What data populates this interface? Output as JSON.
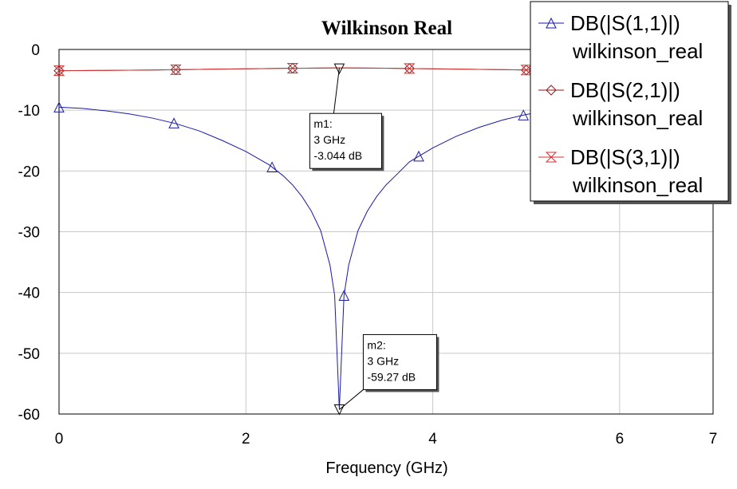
{
  "chart_data": {
    "type": "line",
    "title": "Wilkinson Real",
    "xlabel": "Frequency (GHz)",
    "ylabel": "",
    "xlim": [
      0,
      7
    ],
    "ylim": [
      -60,
      0
    ],
    "xticks": [
      0,
      2,
      4,
      6,
      7
    ],
    "yticks": [
      0,
      -10,
      -20,
      -30,
      -40,
      -50,
      -60
    ],
    "grid": true,
    "legend_position": "top-right",
    "series": [
      {
        "name": "DB(|S(1,1)|)",
        "sub": "wilkinson_real",
        "color": "#1a1aa6",
        "marker": "triangle-up",
        "x": [
          0,
          0.25,
          0.5,
          0.75,
          1.0,
          1.25,
          1.5,
          1.75,
          2.0,
          2.25,
          2.4,
          2.5,
          2.6,
          2.7,
          2.8,
          2.9,
          2.95,
          3.0,
          3.05,
          3.1,
          3.2,
          3.3,
          3.4,
          3.5,
          3.6,
          3.75,
          4.0,
          4.25,
          4.5,
          4.75,
          5.0,
          5.25,
          5.5,
          5.75,
          6.0,
          6.25,
          6.5,
          6.75,
          7.0
        ],
        "values": [
          -9.5,
          -9.7,
          -10.1,
          -10.6,
          -11.3,
          -12.2,
          -13.4,
          -15.0,
          -16.8,
          -19.0,
          -20.8,
          -22.3,
          -24.2,
          -26.6,
          -29.8,
          -35.5,
          -40.5,
          -59.27,
          -40.5,
          -35.5,
          -29.8,
          -26.6,
          -24.2,
          -22.3,
          -20.8,
          -18.5,
          -16.2,
          -14.3,
          -12.8,
          -11.6,
          -10.7,
          -10.1,
          -9.8,
          -9.6,
          -9.5,
          -9.45,
          -9.4,
          -9.4,
          -9.4
        ],
        "marker_x": [
          0,
          1.23,
          2.28,
          3.05,
          3.85,
          4.97
        ]
      },
      {
        "name": "DB(|S(2,1)|)",
        "sub": "wilkinson_real",
        "color": "#8b1a1a",
        "marker": "diamond",
        "x": [
          0,
          0.5,
          1.0,
          1.5,
          2.0,
          2.5,
          3.0,
          3.5,
          4.0,
          4.5,
          5.0,
          5.5,
          6.0,
          6.5,
          7.0
        ],
        "values": [
          -3.5,
          -3.45,
          -3.38,
          -3.28,
          -3.18,
          -3.09,
          -3.044,
          -3.09,
          -3.18,
          -3.28,
          -3.38,
          -3.45,
          -3.5,
          -3.52,
          -3.55
        ],
        "marker_x": [
          0,
          1.25,
          2.5,
          3.75,
          5.0
        ]
      },
      {
        "name": "DB(|S(3,1)|)",
        "sub": "wilkinson_real",
        "color": "#d63030",
        "marker": "hourglass",
        "x": [
          0,
          0.5,
          1.0,
          1.5,
          2.0,
          2.5,
          3.0,
          3.5,
          4.0,
          4.5,
          5.0,
          5.5,
          6.0,
          6.5,
          7.0
        ],
        "values": [
          -3.5,
          -3.45,
          -3.38,
          -3.28,
          -3.18,
          -3.09,
          -3.044,
          -3.09,
          -3.18,
          -3.28,
          -3.38,
          -3.45,
          -3.5,
          -3.52,
          -3.55
        ],
        "marker_x": [
          0,
          1.25,
          2.5,
          3.75,
          5.0
        ]
      }
    ],
    "annotations": [
      {
        "id": "m1",
        "label": "m1:",
        "freq": "3 GHz",
        "value": "-3.044 dB",
        "x": 3,
        "y": -3.044
      },
      {
        "id": "m2",
        "label": "m2:",
        "freq": "3 GHz",
        "value": "-59.27 dB",
        "x": 3,
        "y": -59.27
      }
    ]
  }
}
